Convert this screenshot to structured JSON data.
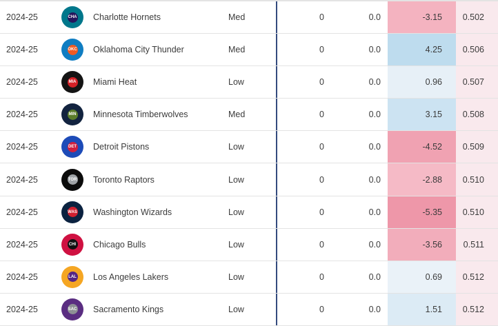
{
  "table": {
    "rows": [
      {
        "season": "2024-25",
        "team": "Charlotte Hornets",
        "abbr": "CHA",
        "level": "Med",
        "games": "0",
        "avg": "0.0",
        "value": "-3.15",
        "value_bg": "#f4b3c0",
        "pct": "0.502",
        "pct_bg": "#f9e9ed",
        "logo_outer": "#00778b",
        "logo_inner": "#24155c"
      },
      {
        "season": "2024-25",
        "team": "Oklahoma City Thunder",
        "abbr": "OKC",
        "level": "Med",
        "games": "0",
        "avg": "0.0",
        "value": "4.25",
        "value_bg": "#bedcee",
        "pct": "0.506",
        "pct_bg": "#f9e9ed",
        "logo_outer": "#0f7dc2",
        "logo_inner": "#ee5a22"
      },
      {
        "season": "2024-25",
        "team": "Miami Heat",
        "abbr": "MIA",
        "level": "Low",
        "games": "0",
        "avg": "0.0",
        "value": "0.96",
        "value_bg": "#e7f0f7",
        "pct": "0.507",
        "pct_bg": "#f9e9ed",
        "logo_outer": "#141414",
        "logo_inner": "#d42127"
      },
      {
        "season": "2024-25",
        "team": "Minnesota Timberwolves",
        "abbr": "MIN",
        "level": "Med",
        "games": "0",
        "avg": "0.0",
        "value": "3.15",
        "value_bg": "#cce3f2",
        "pct": "0.508",
        "pct_bg": "#f9e9ed",
        "logo_outer": "#12233f",
        "logo_inner": "#5a7d2a"
      },
      {
        "season": "2024-25",
        "team": "Detroit Pistons",
        "abbr": "DET",
        "level": "Low",
        "games": "0",
        "avg": "0.0",
        "value": "-4.52",
        "value_bg": "#f0a2b2",
        "pct": "0.509",
        "pct_bg": "#f9e9ed",
        "logo_outer": "#1d4bb8",
        "logo_inner": "#d11f3e"
      },
      {
        "season": "2024-25",
        "team": "Toronto Raptors",
        "abbr": "TOR",
        "level": "Low",
        "games": "0",
        "avg": "0.0",
        "value": "-2.88",
        "value_bg": "#f5bac6",
        "pct": "0.510",
        "pct_bg": "#f9e9ed",
        "logo_outer": "#0b0b0b",
        "logo_inner": "#9ea2a6"
      },
      {
        "season": "2024-25",
        "team": "Washington Wizards",
        "abbr": "WAS",
        "level": "Low",
        "games": "0",
        "avg": "0.0",
        "value": "-5.35",
        "value_bg": "#ee97a9",
        "pct": "0.510",
        "pct_bg": "#f9e9ed",
        "logo_outer": "#0b2240",
        "logo_inner": "#d02030"
      },
      {
        "season": "2024-25",
        "team": "Chicago Bulls",
        "abbr": "CHI",
        "level": "Low",
        "games": "0",
        "avg": "0.0",
        "value": "-3.56",
        "value_bg": "#f2adbb",
        "pct": "0.511",
        "pct_bg": "#f9e9ed",
        "logo_outer": "#cf1141",
        "logo_inner": "#111111"
      },
      {
        "season": "2024-25",
        "team": "Los Angeles Lakers",
        "abbr": "LAL",
        "level": "Low",
        "games": "0",
        "avg": "0.0",
        "value": "0.69",
        "value_bg": "#eaf2f8",
        "pct": "0.512",
        "pct_bg": "#f9e9ed",
        "logo_outer": "#f5a623",
        "logo_inner": "#552583"
      },
      {
        "season": "2024-25",
        "team": "Sacramento Kings",
        "abbr": "SAC",
        "level": "Low",
        "games": "0",
        "avg": "0.0",
        "value": "1.51",
        "value_bg": "#dcebf5",
        "pct": "0.512",
        "pct_bg": "#f9e9ed",
        "logo_outer": "#5a2d81",
        "logo_inner": "#8e9095"
      }
    ]
  },
  "colors": {
    "divider_blue": "#334a7d",
    "row_border": "#e3e3e3"
  }
}
